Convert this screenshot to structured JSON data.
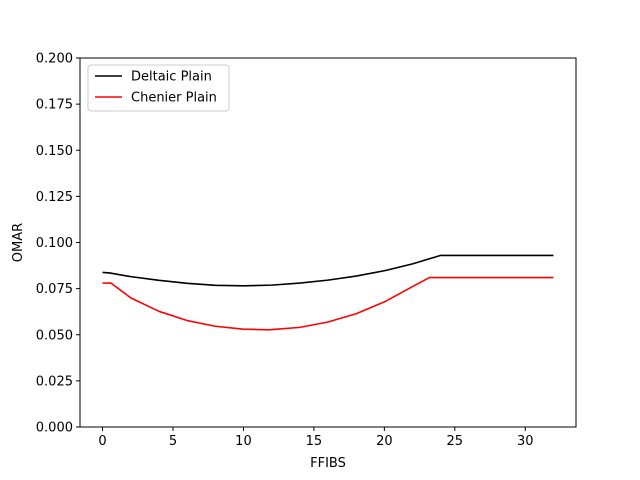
{
  "chart_data": {
    "type": "line",
    "title": "",
    "xlabel": "FFIBS",
    "ylabel": "OMAR",
    "xlim": [
      -1.6,
      33.6
    ],
    "ylim": [
      0.0,
      0.2
    ],
    "xticks": [
      0,
      5,
      10,
      15,
      20,
      25,
      30
    ],
    "yticks": [
      0.0,
      0.025,
      0.05,
      0.075,
      0.1,
      0.125,
      0.15,
      0.175,
      0.2
    ],
    "xtick_labels": [
      "0",
      "5",
      "10",
      "15",
      "20",
      "25",
      "30"
    ],
    "ytick_labels": [
      "0.000",
      "0.025",
      "0.050",
      "0.075",
      "0.100",
      "0.125",
      "0.150",
      "0.175",
      "0.200"
    ],
    "grid": false,
    "legend_position": "top-left",
    "series": [
      {
        "name": "Deltaic Plain",
        "color": "#000000",
        "x": [
          0,
          0.5,
          2,
          4,
          6,
          8,
          10,
          12,
          14,
          16,
          18,
          20,
          22,
          24,
          32
        ],
        "y": [
          0.0838,
          0.0835,
          0.0815,
          0.0795,
          0.0779,
          0.0768,
          0.0765,
          0.0769,
          0.078,
          0.0796,
          0.0818,
          0.0847,
          0.0884,
          0.093,
          0.093
        ]
      },
      {
        "name": "Chenier Plain",
        "color": "#ff0000",
        "x": [
          0,
          0.6,
          2,
          4,
          6,
          8,
          10,
          11.8,
          14,
          16,
          18,
          20,
          22,
          23.2,
          32
        ],
        "y": [
          0.078,
          0.078,
          0.07,
          0.0627,
          0.0577,
          0.0546,
          0.053,
          0.0527,
          0.054,
          0.0569,
          0.0614,
          0.0678,
          0.0761,
          0.081,
          0.081
        ]
      }
    ]
  }
}
